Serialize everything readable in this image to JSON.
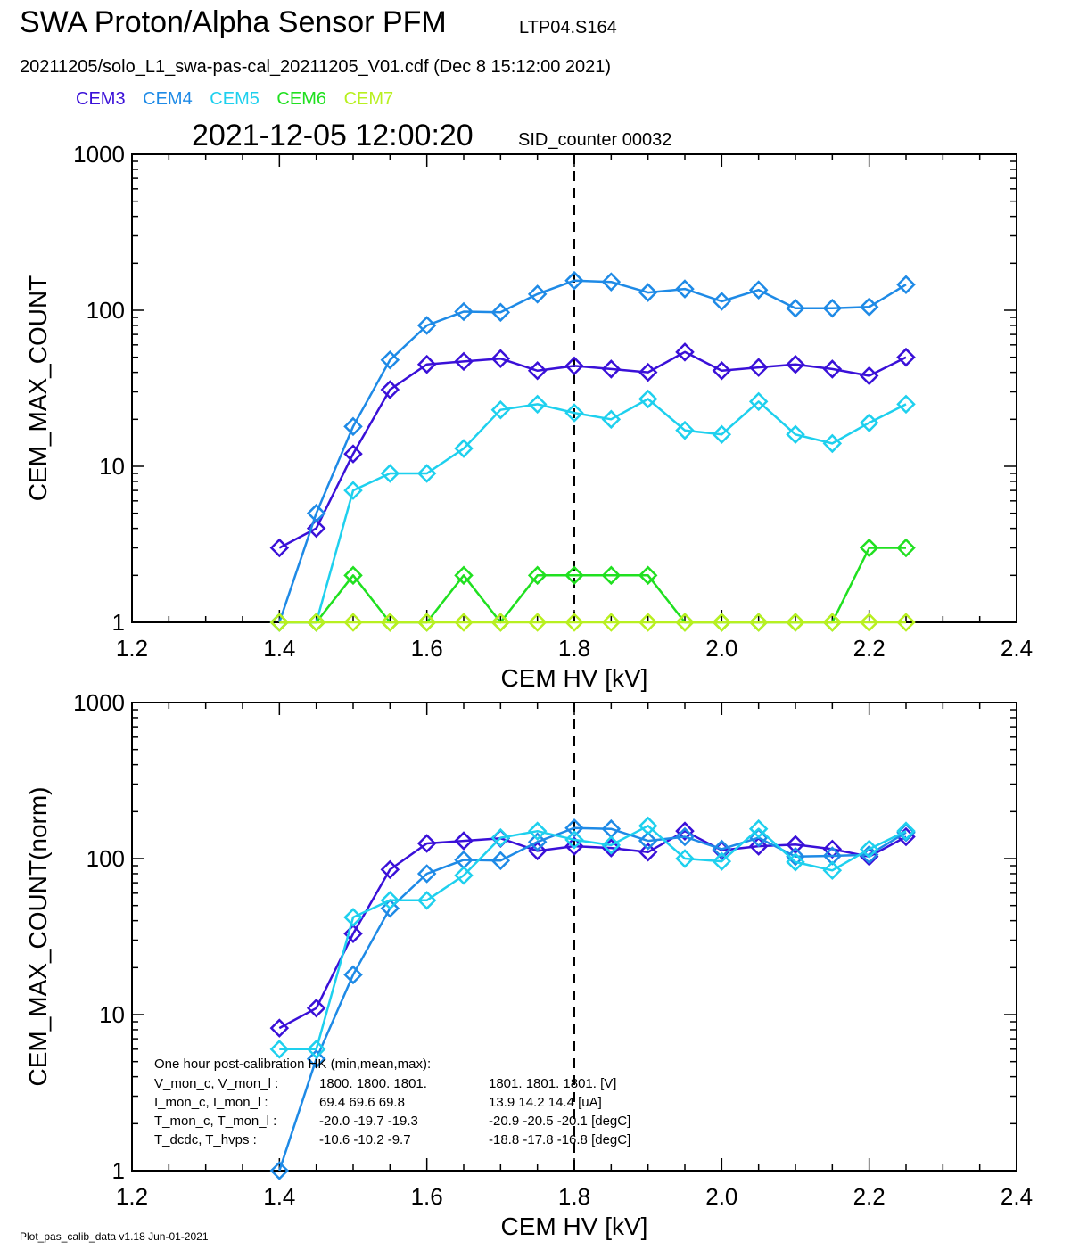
{
  "header": {
    "title": "SWA Proton/Alpha Sensor PFM",
    "sensor_id": "LTP04.S164",
    "file_line": "20211205/solo_L1_swa-pas-cal_20211205_V01.cdf  (Dec  8 15:12:00 2021)",
    "timestamp": "2021-12-05 12:00:20",
    "sid_counter": "SID_counter 00032"
  },
  "legend": [
    {
      "name": "CEM3",
      "color": "#3a10d8"
    },
    {
      "name": "CEM4",
      "color": "#1e8ae6"
    },
    {
      "name": "CEM5",
      "color": "#1ed0ee"
    },
    {
      "name": "CEM6",
      "color": "#20e020"
    },
    {
      "name": "CEM7",
      "color": "#b8f020"
    }
  ],
  "footer": "Plot_pas_calib_data v1.18 Jun-01-2021",
  "chart_data": [
    {
      "type": "line",
      "xlabel": "CEM HV [kV]",
      "ylabel": "CEM_MAX_COUNT",
      "xlim": [
        1.2,
        2.4
      ],
      "ylim": [
        1,
        1000
      ],
      "yscale": "log",
      "x_ticks": [
        "1.2",
        "1.4",
        "1.6",
        "1.8",
        "2.0",
        "2.2",
        "2.4"
      ],
      "y_ticks": [
        "1",
        "10",
        "100",
        "1000"
      ],
      "marker_line_x": 1.8,
      "x": [
        1.4,
        1.45,
        1.5,
        1.55,
        1.6,
        1.65,
        1.7,
        1.75,
        1.8,
        1.85,
        1.9,
        1.95,
        2.0,
        2.05,
        2.1,
        2.15,
        2.2,
        2.25
      ],
      "series": [
        {
          "name": "CEM3",
          "color": "#3a10d8",
          "values": [
            3,
            4,
            12,
            31,
            45,
            47,
            49,
            41,
            44,
            42,
            40,
            54,
            41,
            43,
            45,
            42,
            38,
            50
          ]
        },
        {
          "name": "CEM4",
          "color": "#1e8ae6",
          "values": [
            1,
            5,
            18,
            48,
            80,
            98,
            97,
            127,
            155,
            152,
            130,
            137,
            114,
            135,
            103,
            103,
            105,
            146
          ]
        },
        {
          "name": "CEM5",
          "color": "#1ed0ee",
          "values": [
            1,
            1,
            7,
            9,
            9,
            13,
            23,
            25,
            22,
            20,
            27,
            17,
            16,
            26,
            16,
            14,
            19,
            25
          ]
        },
        {
          "name": "CEM6",
          "color": "#20e020",
          "values": [
            1,
            1,
            2,
            1,
            1,
            2,
            1,
            2,
            2,
            2,
            2,
            1,
            1,
            1,
            1,
            1,
            3,
            3
          ]
        },
        {
          "name": "CEM7",
          "color": "#b8f020",
          "values": [
            1,
            1,
            1,
            1,
            1,
            1,
            1,
            1,
            1,
            1,
            1,
            1,
            1,
            1,
            1,
            1,
            1,
            1
          ]
        }
      ]
    },
    {
      "type": "line",
      "xlabel": "CEM HV [kV]",
      "ylabel": "CEM_MAX_COUNT(norm)",
      "xlim": [
        1.2,
        2.4
      ],
      "ylim": [
        1,
        1000
      ],
      "yscale": "log",
      "x_ticks": [
        "1.2",
        "1.4",
        "1.6",
        "1.8",
        "2.0",
        "2.2",
        "2.4"
      ],
      "y_ticks": [
        "1",
        "10",
        "100",
        "1000"
      ],
      "marker_line_x": 1.8,
      "x": [
        1.4,
        1.45,
        1.5,
        1.55,
        1.6,
        1.65,
        1.7,
        1.75,
        1.8,
        1.85,
        1.9,
        1.95,
        2.0,
        2.05,
        2.1,
        2.15,
        2.2,
        2.25
      ],
      "series": [
        {
          "name": "CEM3",
          "color": "#3a10d8",
          "values": [
            8.2,
            11,
            33,
            85,
            125,
            130,
            135,
            112,
            120,
            117,
            110,
            150,
            113,
            120,
            123,
            115,
            103,
            138
          ]
        },
        {
          "name": "CEM4",
          "color": "#1e8ae6",
          "values": [
            1,
            5.2,
            18,
            48,
            80,
            98,
            97,
            128,
            157,
            155,
            130,
            138,
            115,
            136,
            103,
            104,
            106,
            147
          ]
        },
        {
          "name": "CEM5",
          "color": "#1ed0ee",
          "values": [
            6,
            6,
            42,
            54,
            54,
            78,
            136,
            150,
            132,
            122,
            162,
            100,
            96,
            155,
            95,
            84,
            115,
            150
          ]
        }
      ],
      "annotation": {
        "title": "One hour post-calibration HK (min,mean,max):",
        "rows": [
          {
            "label": "V_mon_c, V_mon_l :",
            "group1": "1800.  1800.  1801.",
            "group2": "1801.  1801.  1801.  [V]"
          },
          {
            "label": "I_mon_c,  I_mon_l :",
            "group1": "69.4   69.6   69.8",
            "group2": "13.9   14.2  14.4  [uA]"
          },
          {
            "label": "T_mon_c, T_mon_l :",
            "group1": "-20.0  -19.7  -19.3",
            "group2": "-20.9  -20.5  -20.1  [degC]"
          },
          {
            "label": "T_dcdc,    T_hvps :",
            "group1": "-10.6  -10.2   -9.7",
            "group2": "-18.8  -17.8  -16.8  [degC]"
          }
        ]
      }
    }
  ]
}
